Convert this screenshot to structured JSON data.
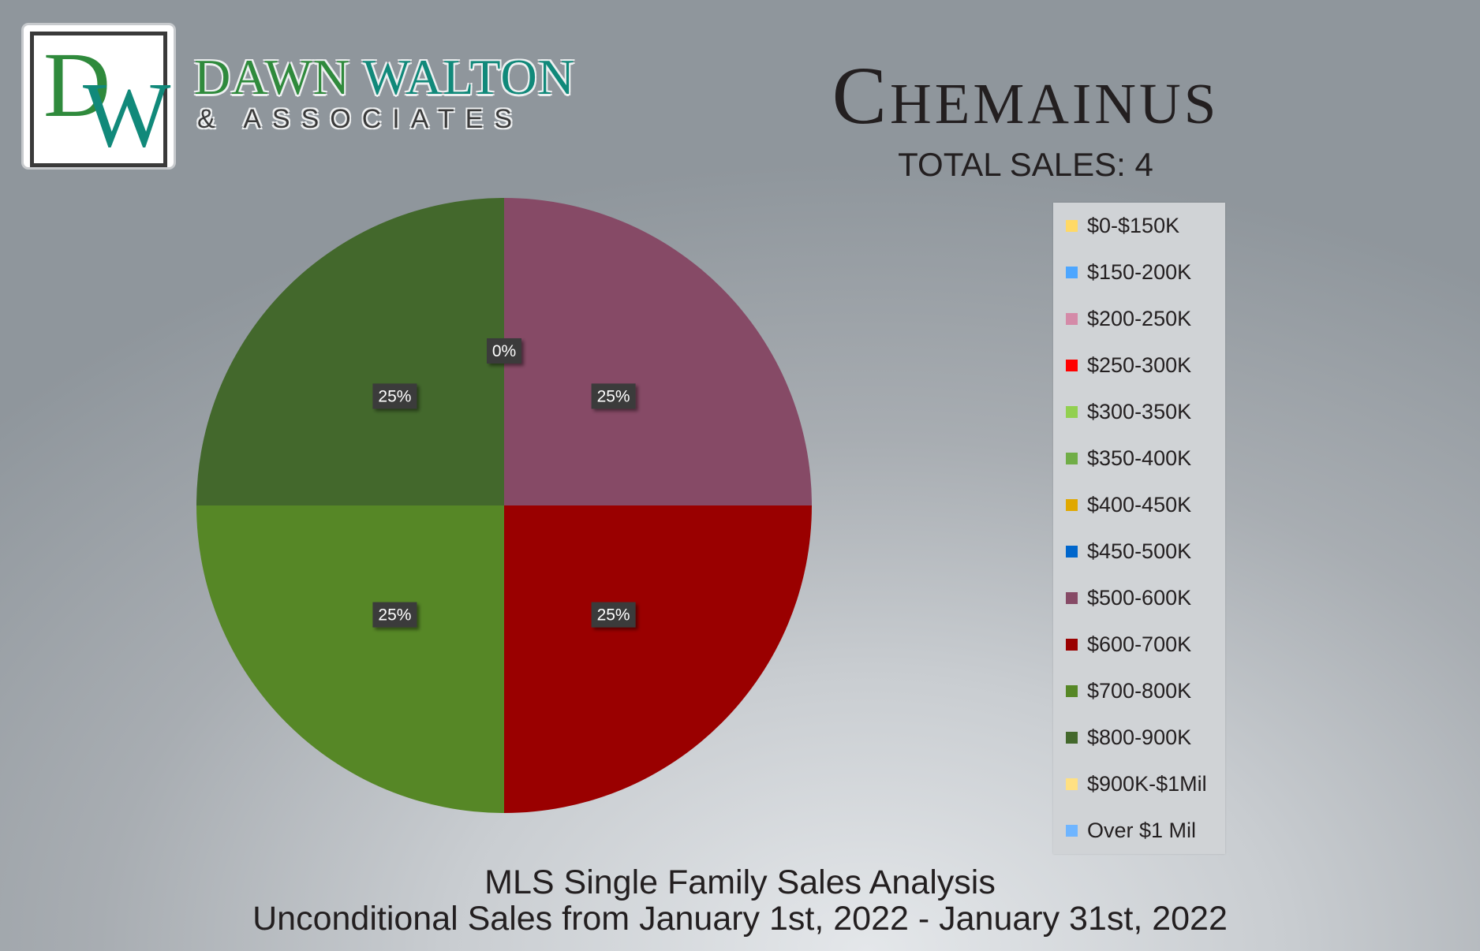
{
  "brand": {
    "logo_mark_d": "D",
    "logo_mark_w": "W",
    "name_part1": "DAWN",
    "name_part2": "WALTON",
    "subtitle": "& ASSOCIATES"
  },
  "header": {
    "title": "Chemainus",
    "total_sales": "TOTAL SALES: 4"
  },
  "footer": {
    "line1": "MLS Single Family Sales Analysis",
    "line2": "Unconditional Sales from January 1st, 2022 - January 31st, 2022"
  },
  "chart_data": {
    "type": "pie",
    "categories": [
      "$0-$150K",
      "$150-200K",
      "$200-250K",
      "$250-300K",
      "$300-350K",
      "$350-400K",
      "$400-450K",
      "$450-500K",
      "$500-600K",
      "$600-700K",
      "$700-800K",
      "$800-900K",
      "$900K-$1Mil",
      "Over $1 Mil"
    ],
    "values": [
      0,
      0,
      0,
      0,
      0,
      0,
      0,
      0,
      25,
      25,
      25,
      25,
      0,
      0
    ],
    "colors": [
      "#ffd966",
      "#4da6ff",
      "#d48aa8",
      "#ff0000",
      "#92d050",
      "#70ad47",
      "#e0a800",
      "#0066cc",
      "#864a66",
      "#9a0000",
      "#568726",
      "#43682c",
      "#ffe082",
      "#6fb5ff"
    ],
    "data_labels": [
      {
        "text": "0%",
        "category": "$0-$150K"
      },
      {
        "text": "25%",
        "category": "$500-600K"
      },
      {
        "text": "25%",
        "category": "$600-700K"
      },
      {
        "text": "25%",
        "category": "$700-800K"
      },
      {
        "text": "25%",
        "category": "$800-900K"
      }
    ],
    "legend_position": "right",
    "start_angle": "top, clockwise"
  }
}
